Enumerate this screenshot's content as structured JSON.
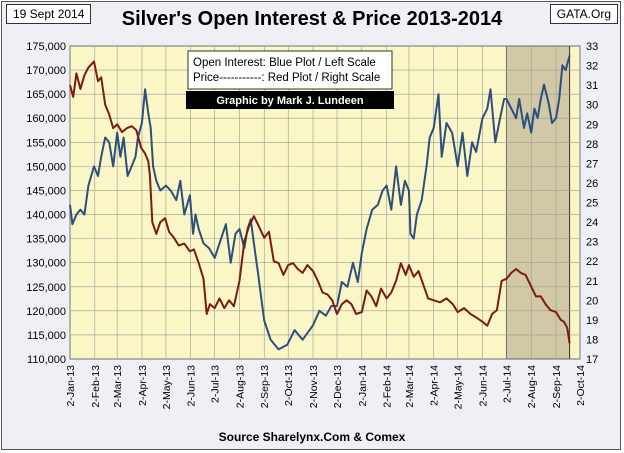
{
  "header": {
    "date": "19 Sept 2014",
    "source": "GATA.Org",
    "title": "Silver's Open Interest & Price 2013-2014",
    "footer": "Source Sharelynx.Com & Comex"
  },
  "legend": {
    "line1": "Open Interest:  Blue Plot / Left Scale",
    "line2": "Price-----------: Red Plot / Right Scale",
    "credit": "Graphic by Mark J. Lundeen"
  },
  "colors": {
    "plot_background": "#fbf6c6",
    "shaded_region": "#c9c1a0",
    "open_interest": "#2c4f7c",
    "price": "#7a1c14",
    "grid": "#9a9a9a"
  },
  "chart_data": {
    "type": "line",
    "title": "Silver's Open Interest & Price 2013-2014",
    "grid": true,
    "legend_position": "top-center",
    "x_tick_labels": [
      "2-Jan-13",
      "2-Feb-13",
      "2-Mar-13",
      "2-Apr-13",
      "2-May-13",
      "2-Jun-13",
      "2-Jul-13",
      "2-Aug-13",
      "2-Sep-13",
      "2-Oct-13",
      "2-Nov-13",
      "2-Dec-13",
      "2-Jan-14",
      "2-Feb-14",
      "2-Mar-14",
      "2-Apr-14",
      "2-May-14",
      "2-Jun-14",
      "2-Jul-14",
      "2-Aug-14",
      "2-Sep-14",
      "2-Oct-14"
    ],
    "y_left": {
      "min": 110000,
      "max": 175000,
      "step": 5000,
      "tick_labels": [
        "110,000",
        "115,000",
        "120,000",
        "125,000",
        "130,000",
        "135,000",
        "140,000",
        "145,000",
        "150,000",
        "155,000",
        "160,000",
        "165,000",
        "170,000",
        "175,000"
      ]
    },
    "y_right": {
      "min": 17,
      "max": 33,
      "step": 1,
      "tick_labels": [
        "17",
        "18",
        "19",
        "20",
        "21",
        "22",
        "23",
        "24",
        "25",
        "26",
        "27",
        "28",
        "29",
        "30",
        "31",
        "32",
        "33"
      ]
    },
    "shaded_x_range": [
      "2014-07-02",
      "2014-09-19"
    ],
    "series": [
      {
        "key": "open_interest",
        "axis": "left",
        "dates": [
          "2013-01-02",
          "2013-01-05",
          "2013-01-10",
          "2013-01-15",
          "2013-01-20",
          "2013-01-25",
          "2013-02-01",
          "2013-02-06",
          "2013-02-10",
          "2013-02-15",
          "2013-02-20",
          "2013-02-25",
          "2013-03-02",
          "2013-03-06",
          "2013-03-10",
          "2013-03-15",
          "2013-03-20",
          "2013-03-25",
          "2013-03-28",
          "2013-04-02",
          "2013-04-06",
          "2013-04-10",
          "2013-04-13",
          "2013-04-16",
          "2013-04-20",
          "2013-04-25",
          "2013-05-02",
          "2013-05-08",
          "2013-05-15",
          "2013-05-20",
          "2013-05-25",
          "2013-06-01",
          "2013-06-05",
          "2013-06-08",
          "2013-06-12",
          "2013-06-18",
          "2013-06-25",
          "2013-07-02",
          "2013-07-10",
          "2013-07-16",
          "2013-07-22",
          "2013-07-28",
          "2013-08-02",
          "2013-08-08",
          "2013-08-12",
          "2013-08-16",
          "2013-08-20",
          "2013-08-25",
          "2013-09-02",
          "2013-09-10",
          "2013-09-20",
          "2013-10-01",
          "2013-10-10",
          "2013-10-20",
          "2013-11-02",
          "2013-11-10",
          "2013-11-18",
          "2013-11-25",
          "2013-12-02",
          "2013-12-08",
          "2013-12-15",
          "2013-12-22",
          "2013-12-28",
          "2014-01-02",
          "2014-01-08",
          "2014-01-15",
          "2014-01-22",
          "2014-01-28",
          "2014-02-02",
          "2014-02-08",
          "2014-02-14",
          "2014-02-20",
          "2014-02-25",
          "2014-03-02",
          "2014-03-04",
          "2014-03-08",
          "2014-03-12",
          "2014-03-18",
          "2014-03-24",
          "2014-03-28",
          "2014-04-02",
          "2014-04-08",
          "2014-04-12",
          "2014-04-18",
          "2014-04-25",
          "2014-05-02",
          "2014-05-08",
          "2014-05-14",
          "2014-05-20",
          "2014-05-25",
          "2014-06-02",
          "2014-06-08",
          "2014-06-12",
          "2014-06-18",
          "2014-06-24",
          "2014-06-29",
          "2014-07-02",
          "2014-07-08",
          "2014-07-14",
          "2014-07-18",
          "2014-07-24",
          "2014-07-28",
          "2014-08-02",
          "2014-08-06",
          "2014-08-10",
          "2014-08-14",
          "2014-08-18",
          "2014-08-24",
          "2014-08-28",
          "2014-09-02",
          "2014-09-06",
          "2014-09-10",
          "2014-09-14",
          "2014-09-19"
        ],
        "values": [
          142000,
          138000,
          140000,
          141000,
          140000,
          146000,
          150000,
          148000,
          152000,
          156000,
          155000,
          150000,
          157000,
          152000,
          156000,
          148000,
          150000,
          152000,
          156000,
          159000,
          166000,
          161000,
          158000,
          150000,
          147000,
          145000,
          146000,
          145000,
          143000,
          147000,
          140000,
          144000,
          136000,
          140000,
          137000,
          134000,
          133000,
          131000,
          135000,
          138000,
          130000,
          136000,
          137000,
          133000,
          137000,
          139000,
          134000,
          128000,
          118000,
          114000,
          112000,
          113000,
          116000,
          114000,
          117000,
          120000,
          119000,
          121000,
          121000,
          126000,
          125000,
          130000,
          126000,
          132000,
          137000,
          141000,
          142000,
          145000,
          146000,
          141000,
          150000,
          142000,
          147000,
          145000,
          136000,
          135000,
          140000,
          143000,
          150000,
          156000,
          158000,
          165000,
          152000,
          159000,
          157000,
          150000,
          157000,
          148000,
          155000,
          153000,
          160000,
          162000,
          166000,
          155000,
          160000,
          164000,
          164000,
          162000,
          160000,
          164000,
          158000,
          161000,
          157000,
          162000,
          160000,
          164000,
          167000,
          163000,
          159000,
          160000,
          164000,
          171000,
          170000,
          173000
        ]
      },
      {
        "key": "price",
        "axis": "right",
        "dates": [
          "2013-01-02",
          "2013-01-06",
          "2013-01-10",
          "2013-01-15",
          "2013-01-20",
          "2013-01-25",
          "2013-02-01",
          "2013-02-06",
          "2013-02-10",
          "2013-02-15",
          "2013-02-20",
          "2013-02-25",
          "2013-03-02",
          "2013-03-08",
          "2013-03-14",
          "2013-03-20",
          "2013-03-26",
          "2013-04-01",
          "2013-04-06",
          "2013-04-10",
          "2013-04-12",
          "2013-04-15",
          "2013-04-20",
          "2013-04-25",
          "2013-05-01",
          "2013-05-06",
          "2013-05-12",
          "2013-05-18",
          "2013-05-25",
          "2013-06-01",
          "2013-06-06",
          "2013-06-12",
          "2013-06-18",
          "2013-06-22",
          "2013-06-26",
          "2013-07-02",
          "2013-07-08",
          "2013-07-14",
          "2013-07-20",
          "2013-07-26",
          "2013-08-02",
          "2013-08-08",
          "2013-08-14",
          "2013-08-20",
          "2013-08-26",
          "2013-09-02",
          "2013-09-08",
          "2013-09-14",
          "2013-09-20",
          "2013-09-26",
          "2013-10-02",
          "2013-10-08",
          "2013-10-14",
          "2013-10-20",
          "2013-10-26",
          "2013-11-02",
          "2013-11-08",
          "2013-11-14",
          "2013-11-20",
          "2013-11-26",
          "2013-12-02",
          "2013-12-08",
          "2013-12-14",
          "2013-12-20",
          "2013-12-26",
          "2014-01-02",
          "2014-01-08",
          "2014-01-14",
          "2014-01-20",
          "2014-01-26",
          "2014-02-02",
          "2014-02-08",
          "2014-02-14",
          "2014-02-20",
          "2014-02-26",
          "2014-03-02",
          "2014-03-08",
          "2014-03-14",
          "2014-03-20",
          "2014-03-26",
          "2014-04-02",
          "2014-04-10",
          "2014-04-18",
          "2014-04-26",
          "2014-05-02",
          "2014-05-10",
          "2014-05-18",
          "2014-05-26",
          "2014-06-02",
          "2014-06-08",
          "2014-06-14",
          "2014-06-20",
          "2014-06-26",
          "2014-07-02",
          "2014-07-08",
          "2014-07-14",
          "2014-07-20",
          "2014-07-26",
          "2014-08-02",
          "2014-08-08",
          "2014-08-14",
          "2014-08-20",
          "2014-08-26",
          "2014-09-02",
          "2014-09-08",
          "2014-09-12",
          "2014-09-16",
          "2014-09-19"
        ],
        "values": [
          31.0,
          30.4,
          31.6,
          30.8,
          31.5,
          31.9,
          32.2,
          31.2,
          31.4,
          30.0,
          29.5,
          28.8,
          29.0,
          28.6,
          28.8,
          28.9,
          28.7,
          27.8,
          27.5,
          27.1,
          26.4,
          24.0,
          23.4,
          24.0,
          24.2,
          23.5,
          23.2,
          22.8,
          22.9,
          22.5,
          22.6,
          21.9,
          21.1,
          19.3,
          19.8,
          19.6,
          20.1,
          19.6,
          20.0,
          19.7,
          21.0,
          23.0,
          23.8,
          24.3,
          23.8,
          23.2,
          23.5,
          22.0,
          21.9,
          21.3,
          21.8,
          21.9,
          21.6,
          21.4,
          21.8,
          21.5,
          21.0,
          20.4,
          20.3,
          20.0,
          19.3,
          19.8,
          20.0,
          19.8,
          19.3,
          19.4,
          20.5,
          20.2,
          19.7,
          20.6,
          20.1,
          20.4,
          21.0,
          21.9,
          21.3,
          21.8,
          21.2,
          21.5,
          20.8,
          20.1,
          20.0,
          19.9,
          20.1,
          19.8,
          19.4,
          19.6,
          19.3,
          19.1,
          18.9,
          18.7,
          19.3,
          19.5,
          21.0,
          21.1,
          21.4,
          21.6,
          21.4,
          21.3,
          20.7,
          20.2,
          20.2,
          19.8,
          19.5,
          19.4,
          19.0,
          18.9,
          18.6,
          17.8
        ]
      }
    ]
  }
}
